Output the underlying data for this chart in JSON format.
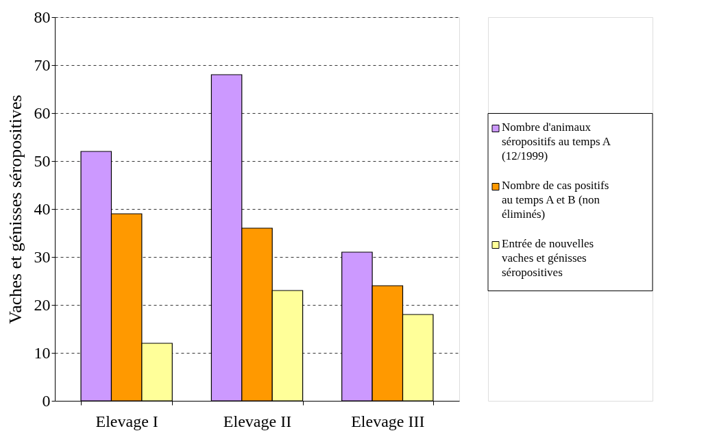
{
  "chart_data": {
    "type": "bar",
    "ylabel": "Vaches et génisses séropositives",
    "categories": [
      "Elevage I",
      "Elevage II",
      "Elevage III"
    ],
    "series": [
      {
        "name": "Nombre d'animaux séropositifs au temps A (12/1999)",
        "color": "#cc99ff",
        "values": [
          52,
          68,
          31
        ]
      },
      {
        "name": "Nombre de cas positifs au temps A et B (non éliminés)",
        "color": "#ff9900",
        "values": [
          39,
          36,
          24
        ]
      },
      {
        "name": "Entrée de nouvelles vaches et génisses séropositives",
        "color": "#ffff99",
        "values": [
          12,
          23,
          18
        ]
      }
    ],
    "ylim": [
      0,
      80
    ],
    "yticks": [
      0,
      10,
      20,
      30,
      40,
      50,
      60,
      70,
      80
    ],
    "grid": "y",
    "legend": "right"
  }
}
